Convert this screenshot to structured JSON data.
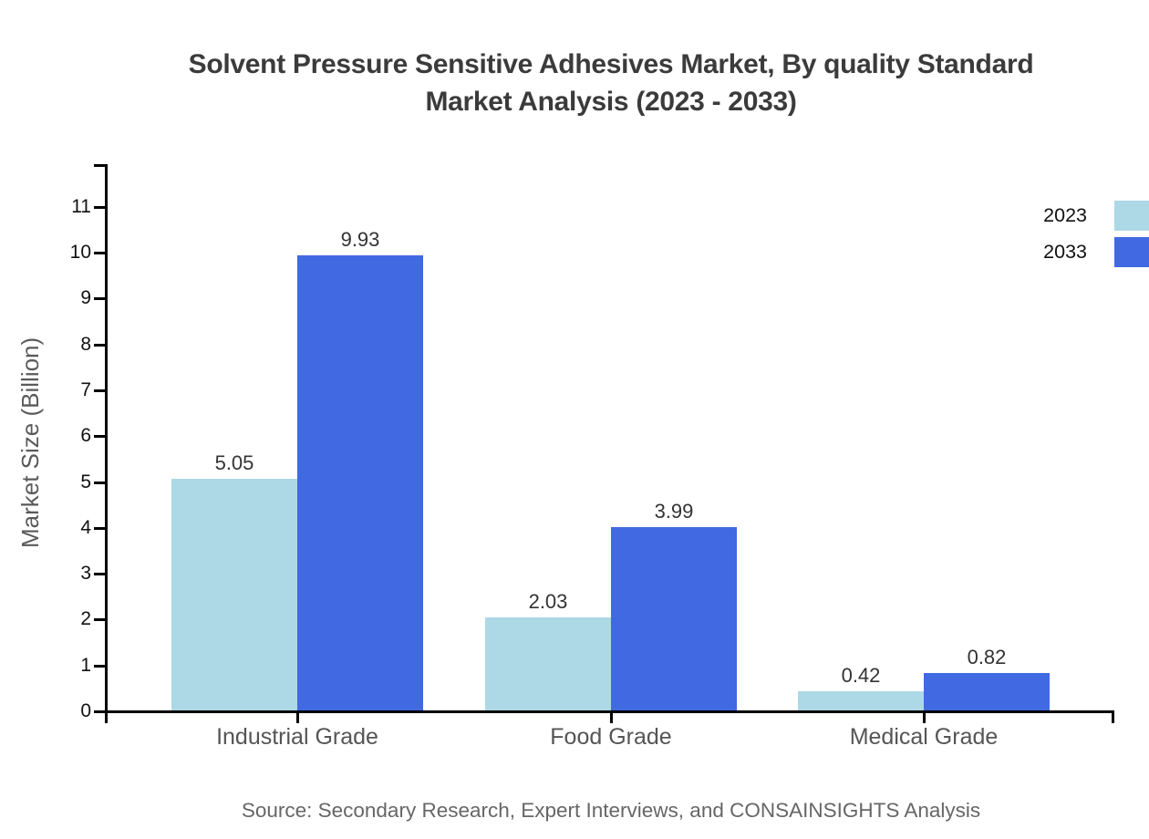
{
  "chart_data": {
    "type": "bar",
    "title_lines": [
      "Solvent Pressure Sensitive Adhesives Market, By quality Standard",
      "Market Analysis (2023 - 2033)"
    ],
    "ylabel": "Market Size (Billion)",
    "categories": [
      "Industrial Grade",
      "Food Grade",
      "Medical Grade"
    ],
    "series": [
      {
        "name": "2023",
        "color": "#ADD8E6",
        "values": [
          5.05,
          2.03,
          0.42
        ]
      },
      {
        "name": "2033",
        "color": "#4169E1",
        "values": [
          9.93,
          3.99,
          0.82
        ]
      }
    ],
    "value_labels": {
      "2023": [
        "5.05",
        "2.03",
        "0.42"
      ],
      "2033": [
        "9.93",
        "3.99",
        "0.82"
      ]
    },
    "yticks": [
      0,
      1,
      2,
      3,
      4,
      5,
      6,
      7,
      8,
      9,
      10,
      11
    ],
    "ylim": [
      0,
      11.9
    ],
    "grid": false,
    "legend_position": "top-right",
    "source": "Source: Secondary Research, Expert Interviews, and CONSAINSIGHTS Analysis",
    "colors": {
      "background": "#ffffff",
      "axis": "#000000",
      "title": "#3b3b3b",
      "ylabel": "#5a5a5a",
      "category_label": "#555555",
      "tick_label": "#111111",
      "value_label": "#333333",
      "legend_label": "#111111",
      "source": "#666666"
    }
  }
}
